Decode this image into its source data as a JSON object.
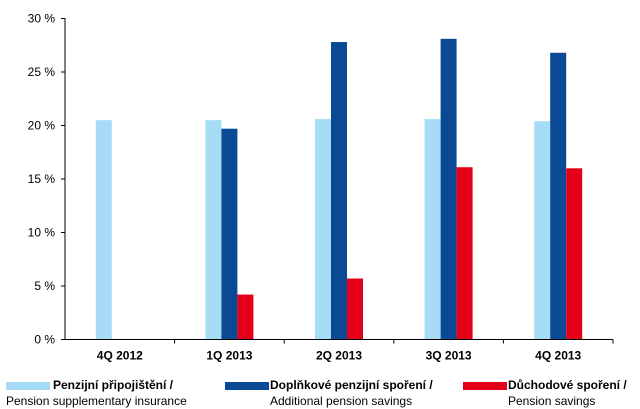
{
  "chart_data": {
    "type": "bar",
    "categories": [
      "4Q 2012",
      "1Q 2013",
      "2Q 2013",
      "3Q 2013",
      "4Q 2013"
    ],
    "series": [
      {
        "name": "Penzijní připojištění / Pension supplementary insurance",
        "color": "#a6dcf6",
        "values": [
          20.5,
          20.5,
          20.6,
          20.6,
          20.4
        ]
      },
      {
        "name": "Doplňkové penzijní spoření / Additional pension savings",
        "color": "#0a4a94",
        "values": [
          null,
          19.7,
          27.8,
          28.1,
          26.8
        ]
      },
      {
        "name": "Důchodové spoření / Pension savings",
        "color": "#e5001a",
        "values": [
          null,
          4.2,
          5.7,
          16.1,
          16.0
        ]
      }
    ],
    "yticks": [
      "0 %",
      "5 %",
      "10 %",
      "15 %",
      "20 %",
      "25 %",
      "30 %"
    ],
    "ylim": [
      0,
      30
    ],
    "grid": false,
    "legend_position": "bottom"
  },
  "legend": [
    {
      "bold": "Penzijní připojištění /",
      "normal": "Pension supplementary insurance",
      "color": "#a6dcf6"
    },
    {
      "bold": "Doplňkové penzijní spoření /",
      "normal": "Additional pension savings",
      "color": "#0a4a94"
    },
    {
      "bold": "Důchodové spoření /",
      "normal": "Pension savings",
      "color": "#e5001a"
    }
  ]
}
